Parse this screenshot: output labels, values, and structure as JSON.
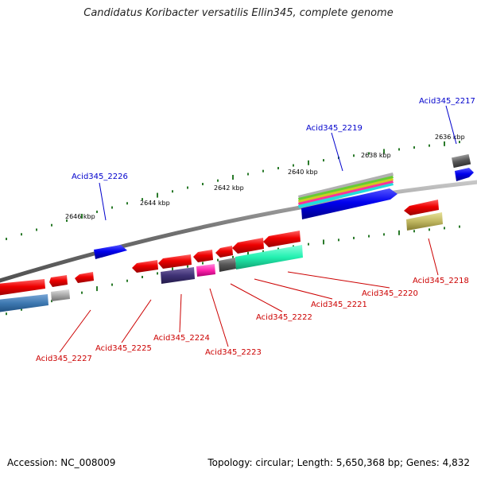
{
  "title": "Candidatus Koribacter versatilis Ellin345, complete genome",
  "footer": {
    "accession": "Accession: NC_008009",
    "stats": "Topology: circular; Length: 5,650,368 bp; Genes: 4,832"
  },
  "colors": {
    "backbone": "#808080",
    "tick_green": "#2a7a2a",
    "label_blue": "#0000cc",
    "label_red": "#cc0000",
    "gene_red": "#ee0000",
    "gene_blue": "#0000ee"
  },
  "scale_ticks": [
    {
      "label": "2646 kbp"
    },
    {
      "label": "2644 kbp"
    },
    {
      "label": "2642 kbp"
    },
    {
      "label": "2640 kbp"
    },
    {
      "label": "2638 kbp"
    },
    {
      "label": "2636 kbp"
    }
  ],
  "gene_labels_top": [
    {
      "id": "Acid345_2226"
    },
    {
      "id": "Acid345_2219"
    },
    {
      "id": "Acid345_2217"
    }
  ],
  "gene_labels_bottom": [
    {
      "id": "Acid345_2227"
    },
    {
      "id": "Acid345_2225"
    },
    {
      "id": "Acid345_2224"
    },
    {
      "id": "Acid345_2223"
    },
    {
      "id": "Acid345_2222"
    },
    {
      "id": "Acid345_2221"
    },
    {
      "id": "Acid345_2220"
    },
    {
      "id": "Acid345_2218"
    }
  ]
}
